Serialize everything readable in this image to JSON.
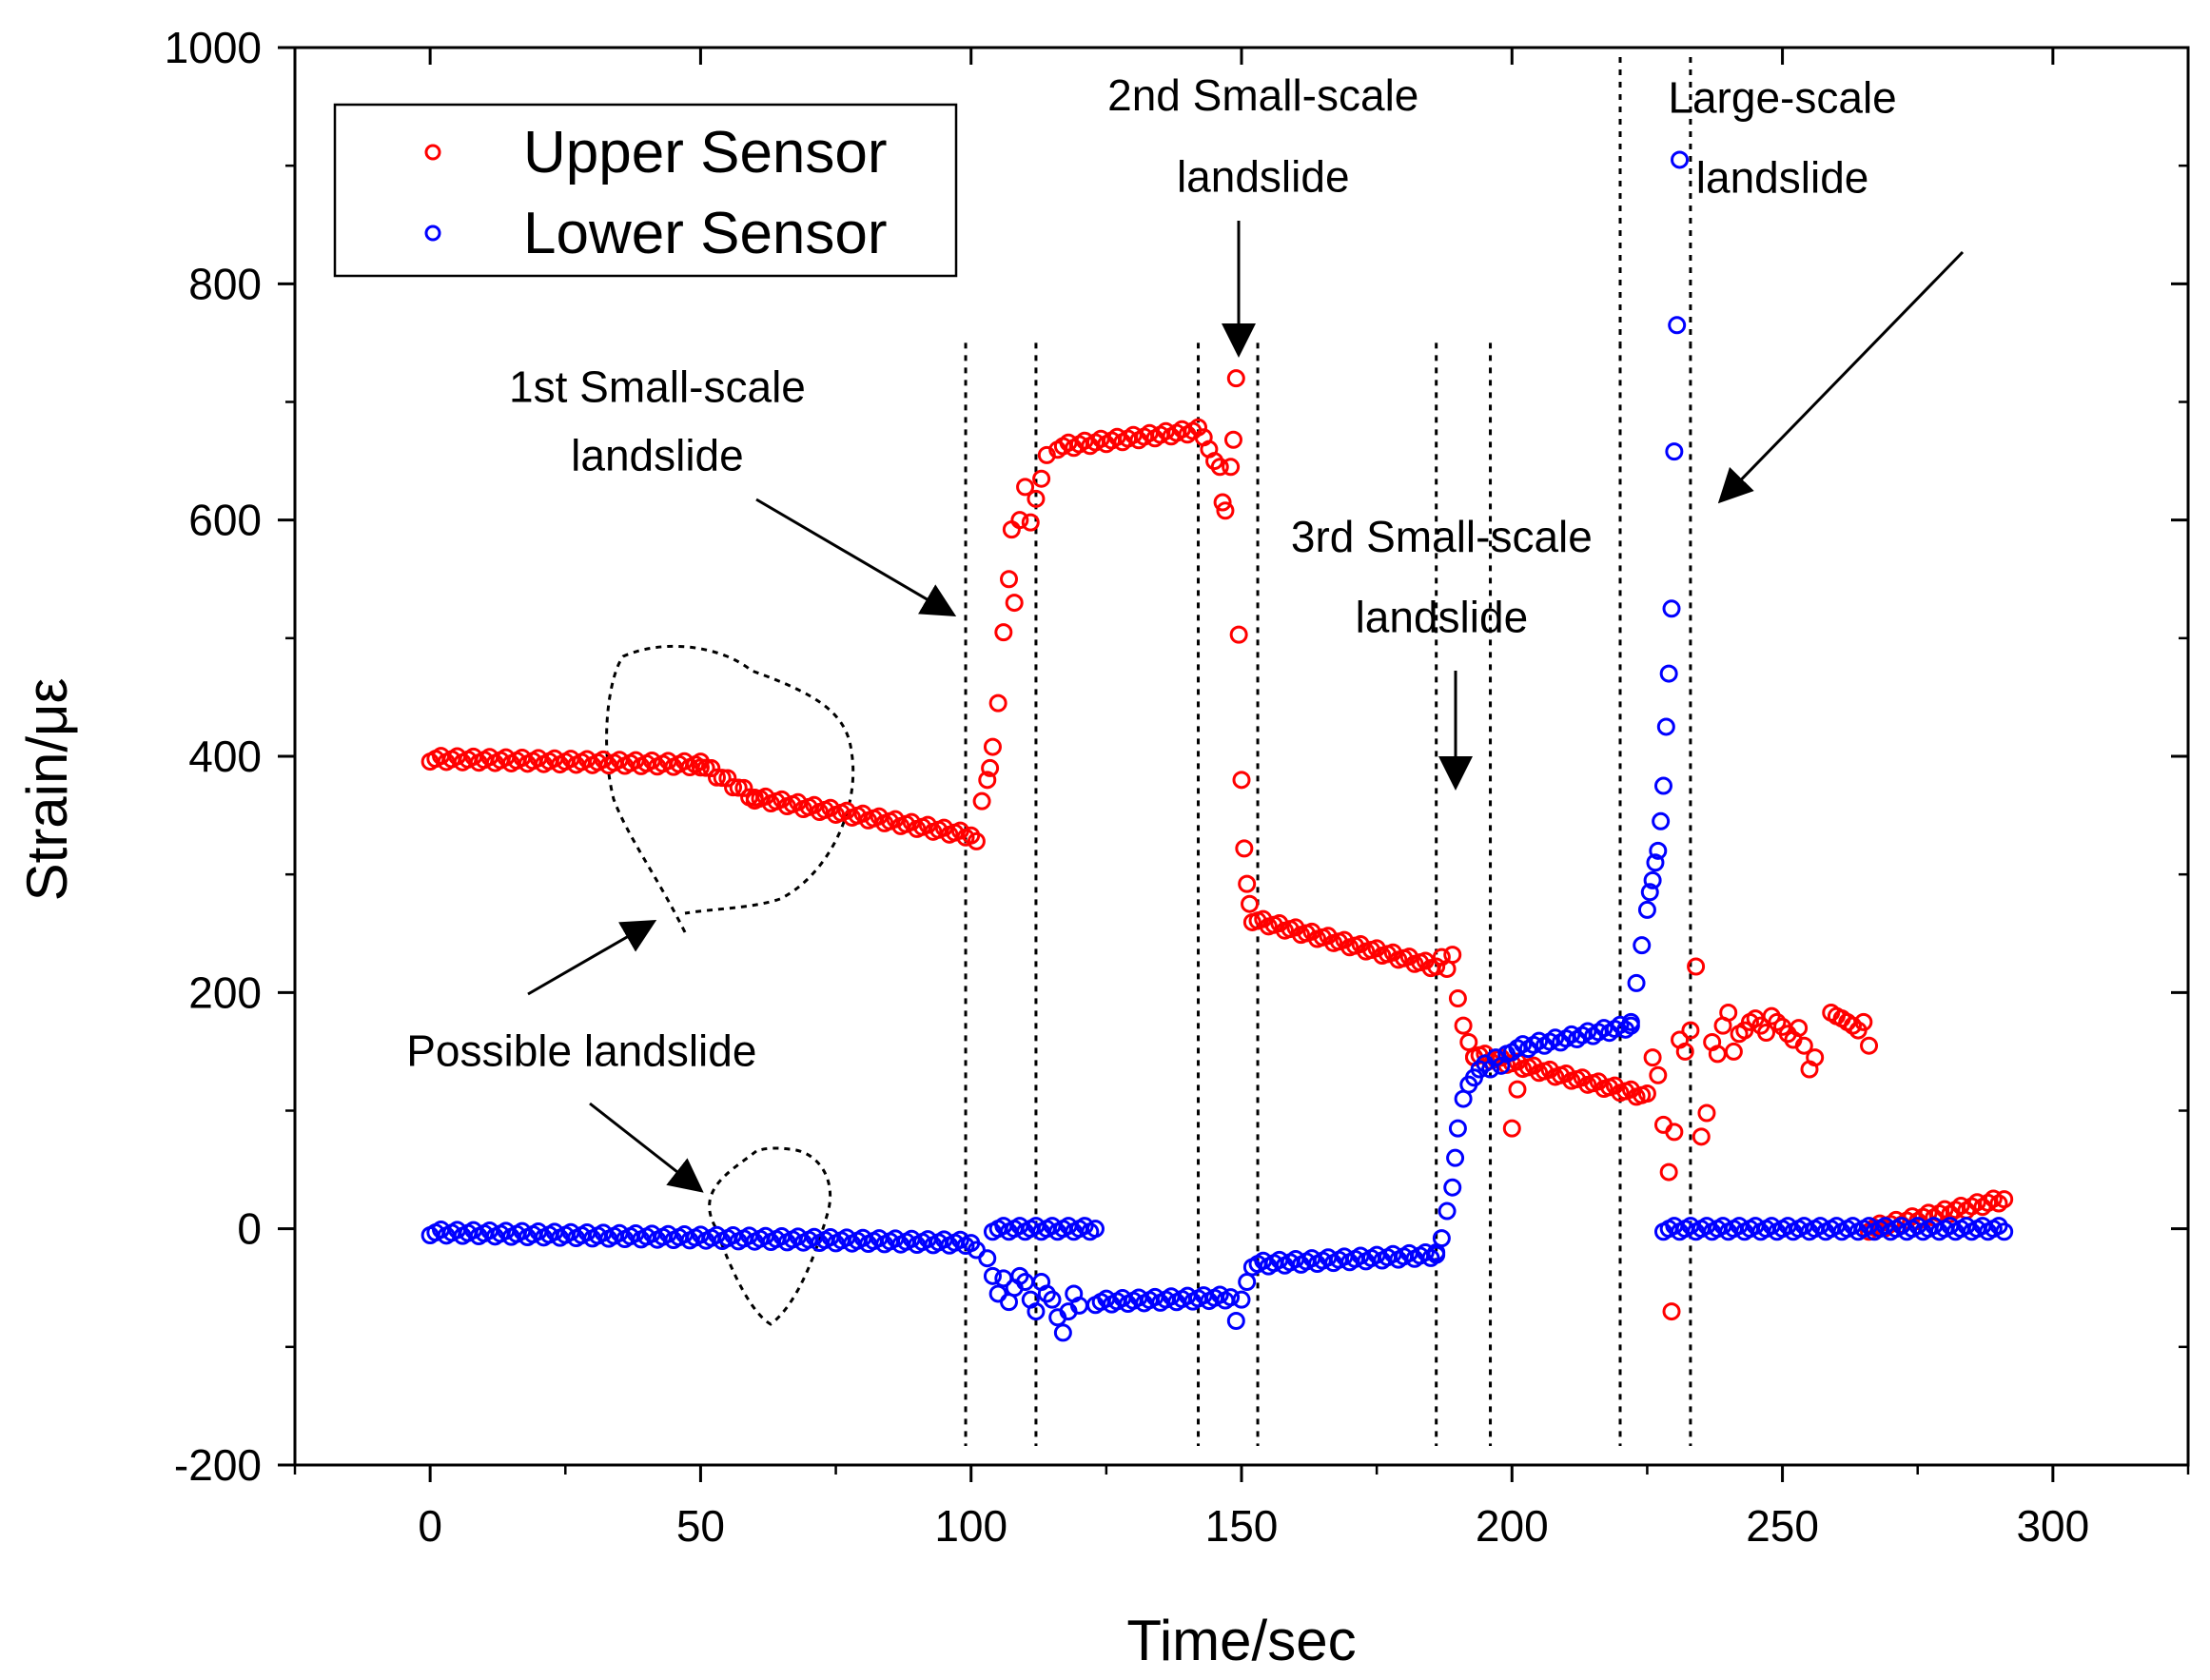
{
  "chart_data": {
    "type": "scatter",
    "title": "",
    "xlabel": "Time/sec",
    "ylabel": "Strain/με",
    "xlim": [
      -25,
      325
    ],
    "ylim": [
      -200,
      1000
    ],
    "xticks": [
      0,
      50,
      100,
      150,
      200,
      250,
      300
    ],
    "yticks": [
      -200,
      0,
      200,
      400,
      600,
      800,
      1000
    ],
    "legend": {
      "position": "top-left",
      "entries": [
        {
          "name": "Upper Sensor",
          "color": "#ff0000"
        },
        {
          "name": "Lower Sensor",
          "color": "#0000ff"
        }
      ]
    },
    "series": [
      {
        "name": "Upper Sensor",
        "color": "#ff0000",
        "segments": [
          {
            "x0": 0,
            "x1": 50,
            "y0": 398,
            "y1": 393,
            "step": 1
          },
          {
            "x0": 50,
            "x1": 60,
            "y0": 393,
            "y1": 365,
            "step": 1
          },
          {
            "x0": 60,
            "x1": 100,
            "y0": 365,
            "y1": 333,
            "step": 1
          },
          {
            "x0": 116,
            "x1": 142,
            "y0": 662,
            "y1": 676,
            "step": 1
          },
          {
            "x0": 152,
            "x1": 186,
            "y0": 262,
            "y1": 222,
            "step": 1
          },
          {
            "x0": 193,
            "x1": 225,
            "y0": 148,
            "y1": 112,
            "step": 1
          },
          {
            "x0": 266,
            "x1": 291,
            "y0": 0,
            "y1": 25,
            "step": 1
          }
        ],
        "points": [
          [
            101,
            328
          ],
          [
            102,
            362
          ],
          [
            103,
            380
          ],
          [
            103.5,
            390
          ],
          [
            104,
            408
          ],
          [
            105,
            445
          ],
          [
            106,
            505
          ],
          [
            107,
            550
          ],
          [
            107.5,
            592
          ],
          [
            108,
            530
          ],
          [
            109,
            600
          ],
          [
            110,
            628
          ],
          [
            111,
            598
          ],
          [
            112,
            618
          ],
          [
            113,
            635
          ],
          [
            114,
            655
          ],
          [
            143,
            670
          ],
          [
            144,
            660
          ],
          [
            145,
            650
          ],
          [
            146,
            645
          ],
          [
            146.5,
            615
          ],
          [
            147,
            608
          ],
          [
            148,
            645
          ],
          [
            148.5,
            668
          ],
          [
            149,
            720
          ],
          [
            149.5,
            503
          ],
          [
            150,
            380
          ],
          [
            150.5,
            322
          ],
          [
            151,
            292
          ],
          [
            151.5,
            275
          ],
          [
            187,
            230
          ],
          [
            188,
            220
          ],
          [
            189,
            232
          ],
          [
            190,
            195
          ],
          [
            191,
            172
          ],
          [
            192,
            158
          ],
          [
            193,
            145
          ],
          [
            200,
            85
          ],
          [
            201,
            118
          ],
          [
            226,
            145
          ],
          [
            227,
            130
          ],
          [
            228,
            88
          ],
          [
            229,
            48
          ],
          [
            229.5,
            -70
          ],
          [
            230,
            82
          ],
          [
            231,
            160
          ],
          [
            232,
            150
          ],
          [
            233,
            168
          ],
          [
            234,
            222
          ],
          [
            235,
            78
          ],
          [
            236,
            98
          ],
          [
            237,
            158
          ],
          [
            238,
            148
          ],
          [
            239,
            172
          ],
          [
            240,
            183
          ],
          [
            241,
            150
          ],
          [
            242,
            165
          ],
          [
            243,
            168
          ],
          [
            244,
            175
          ],
          [
            245,
            178
          ],
          [
            246,
            172
          ],
          [
            247,
            166
          ],
          [
            248,
            180
          ],
          [
            249,
            175
          ],
          [
            250,
            171
          ],
          [
            251,
            165
          ],
          [
            252,
            160
          ],
          [
            253,
            170
          ],
          [
            254,
            155
          ],
          [
            255,
            135
          ],
          [
            256,
            145
          ],
          [
            259,
            183
          ],
          [
            260,
            180
          ],
          [
            261,
            178
          ],
          [
            262,
            175
          ],
          [
            263,
            172
          ],
          [
            264,
            168
          ],
          [
            265,
            175
          ],
          [
            266,
            155
          ]
        ]
      },
      {
        "name": "Lower Sensor",
        "color": "#0000ff",
        "segments": [
          {
            "x0": 0,
            "x1": 100,
            "y0": -3,
            "y1": -12,
            "step": 1
          },
          {
            "x0": 104,
            "x1": 123,
            "y0": 0,
            "y1": 0,
            "step": 1
          },
          {
            "x0": 123,
            "x1": 148,
            "y0": -62,
            "y1": -58,
            "step": 1
          },
          {
            "x0": 152,
            "x1": 186,
            "y0": -30,
            "y1": -22,
            "step": 1
          },
          {
            "x0": 200,
            "x1": 222,
            "y0": 152,
            "y1": 172,
            "step": 1
          },
          {
            "x0": 228,
            "x1": 291,
            "y0": 0,
            "y1": 0,
            "step": 1
          }
        ],
        "points": [
          [
            101,
            -18
          ],
          [
            103,
            -25
          ],
          [
            104,
            -40
          ],
          [
            105,
            -55
          ],
          [
            106,
            -42
          ],
          [
            107,
            -62
          ],
          [
            108,
            -50
          ],
          [
            109,
            -40
          ],
          [
            110,
            -45
          ],
          [
            111,
            -60
          ],
          [
            112,
            -70
          ],
          [
            113,
            -45
          ],
          [
            114,
            -55
          ],
          [
            115,
            -60
          ],
          [
            116,
            -75
          ],
          [
            117,
            -88
          ],
          [
            118,
            -70
          ],
          [
            119,
            -55
          ],
          [
            120,
            -65
          ],
          [
            149,
            -78
          ],
          [
            150,
            -60
          ],
          [
            151,
            -45
          ],
          [
            186,
            -20
          ],
          [
            187,
            -8
          ],
          [
            188,
            15
          ],
          [
            189,
            35
          ],
          [
            189.5,
            60
          ],
          [
            190,
            85
          ],
          [
            191,
            110
          ],
          [
            192,
            122
          ],
          [
            193,
            128
          ],
          [
            194,
            135
          ],
          [
            195,
            140
          ],
          [
            196,
            135
          ],
          [
            197,
            145
          ],
          [
            198,
            138
          ],
          [
            199,
            148
          ],
          [
            222,
            175
          ],
          [
            223,
            208
          ],
          [
            224,
            240
          ],
          [
            225,
            270
          ],
          [
            225.5,
            285
          ],
          [
            226,
            295
          ],
          [
            226.5,
            310
          ],
          [
            227,
            320
          ],
          [
            227.5,
            345
          ],
          [
            228,
            375
          ],
          [
            228.5,
            425
          ],
          [
            229,
            470
          ],
          [
            229.5,
            525
          ],
          [
            230,
            658
          ],
          [
            230.5,
            765
          ],
          [
            231,
            905
          ]
        ]
      }
    ],
    "annotations": [
      {
        "text": "1st Small-scale",
        "x": 42,
        "y": 700
      },
      {
        "text": "landslide",
        "x": 42,
        "y": 642
      },
      {
        "text": "2nd Small-scale",
        "x": 154,
        "y": 947
      },
      {
        "text": "landslide",
        "x": 154,
        "y": 878
      },
      {
        "text": "3rd Small-scale",
        "x": 187,
        "y": 573
      },
      {
        "text": "landslide",
        "x": 187,
        "y": 505
      },
      {
        "text": "Large-scale",
        "x": 250,
        "y": 945
      },
      {
        "text": "landslide",
        "x": 250,
        "y": 877
      },
      {
        "text": "Possible landslide",
        "x": 28,
        "y": 138
      }
    ],
    "reference_lines_x": [
      99,
      112,
      142,
      153,
      186,
      196,
      220,
      233
    ]
  }
}
